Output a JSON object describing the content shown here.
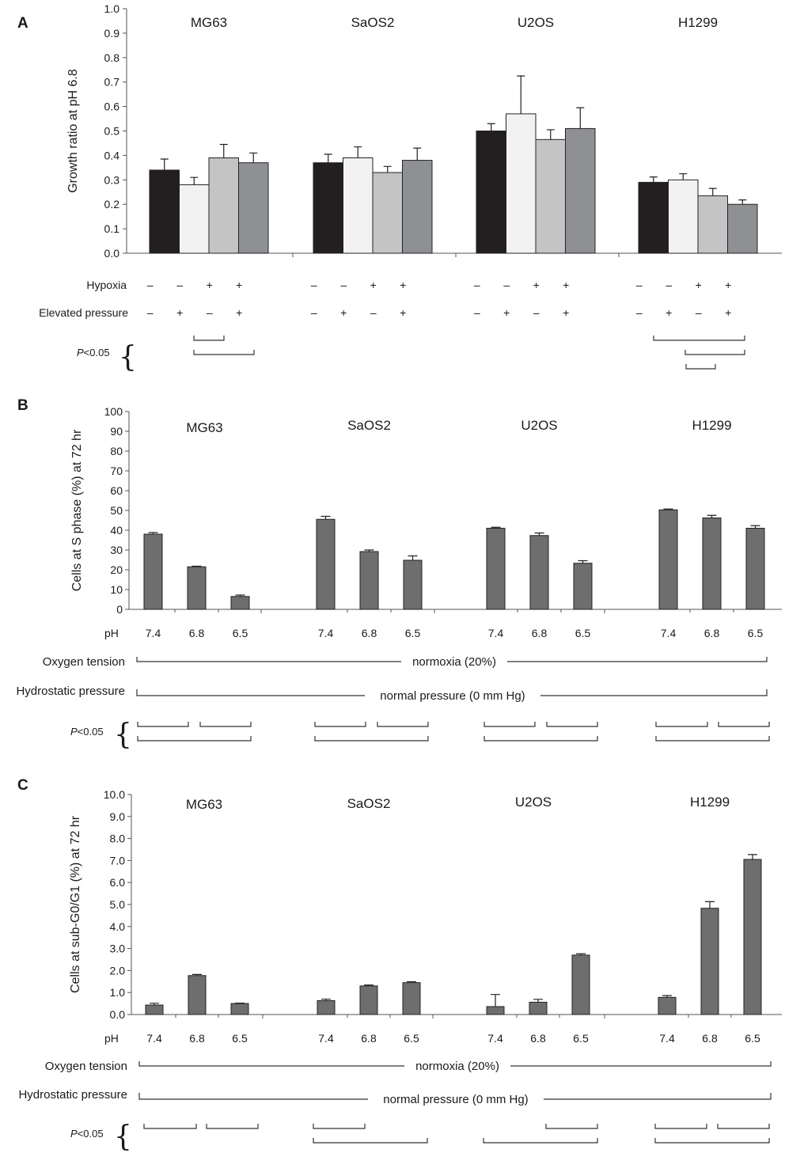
{
  "chart_data": [
    {
      "panel": "A",
      "type": "bar",
      "ylabel": "Growth ratio at pH 6.8",
      "ylim": [
        0,
        1.0
      ],
      "yticks": [
        "0.0",
        "0.1",
        "0.2",
        "0.3",
        "0.4",
        "0.5",
        "0.6",
        "0.7",
        "0.8",
        "0.9",
        "1.0"
      ],
      "groups": [
        "MG63",
        "SaOS2",
        "U2OS",
        "H1299"
      ],
      "series": [
        {
          "name": "normoxia / normal pressure",
          "color": "#231f20",
          "values": [
            0.34,
            0.37,
            0.5,
            0.29
          ],
          "errors": [
            0.045,
            0.035,
            0.03,
            0.022
          ]
        },
        {
          "name": "normoxia / elevated pressure",
          "color": "#f2f2f2",
          "values": [
            0.28,
            0.39,
            0.57,
            0.3
          ],
          "errors": [
            0.03,
            0.045,
            0.155,
            0.025
          ]
        },
        {
          "name": "hypoxia / normal pressure",
          "color": "#c4c4c4",
          "values": [
            0.39,
            0.33,
            0.465,
            0.235
          ],
          "errors": [
            0.055,
            0.025,
            0.04,
            0.03
          ]
        },
        {
          "name": "hypoxia / elevated pressure",
          "color": "#8f9093",
          "values": [
            0.37,
            0.38,
            0.51,
            0.2
          ],
          "errors": [
            0.04,
            0.05,
            0.085,
            0.018
          ]
        }
      ],
      "condition_rows": [
        {
          "label": "Hypoxia",
          "signs": [
            "–",
            "–",
            "+",
            "+"
          ]
        },
        {
          "label": "Elevated pressure",
          "signs": [
            "–",
            "+",
            "–",
            "+"
          ]
        }
      ],
      "significance_label": "<0.05",
      "significance_symbol": "P"
    },
    {
      "panel": "B",
      "type": "bar",
      "ylabel": "Cells at S phase (%) at 72 hr",
      "ylim": [
        0,
        100
      ],
      "yticks": [
        "0",
        "10",
        "20",
        "30",
        "40",
        "50",
        "60",
        "70",
        "80",
        "90",
        "100"
      ],
      "groups": [
        "MG63",
        "SaOS2",
        "U2OS",
        "H1299"
      ],
      "categories": [
        "7.4",
        "6.8",
        "6.5"
      ],
      "x_prefix": "pH",
      "bar_color": "#6e6e6e",
      "values": [
        [
          38,
          21.5,
          6.5
        ],
        [
          45.5,
          29.2,
          24.8
        ],
        [
          41,
          37.3,
          23.3
        ],
        [
          50.3,
          46.2,
          41
        ]
      ],
      "errors": [
        [
          0.8,
          0.3,
          0.7
        ],
        [
          1.5,
          0.8,
          2.2
        ],
        [
          0.5,
          1.3,
          1.3
        ],
        [
          0.4,
          1.3,
          1.3
        ]
      ],
      "oxygen_label": "Oxygen tension",
      "oxygen_value": "normoxia (20%)",
      "pressure_label": "Hydrostatic pressure",
      "pressure_value": "normal pressure (0 mm Hg)",
      "significance_label": "<0.05",
      "significance_symbol": "P"
    },
    {
      "panel": "C",
      "type": "bar",
      "ylabel": "Cells at sub-G0/G1 (%) at 72 hr",
      "ylim": [
        0,
        10
      ],
      "yticks": [
        "0.0",
        "1.0",
        "2.0",
        "3.0",
        "4.0",
        "5.0",
        "6.0",
        "7.0",
        "8.0",
        "9.0",
        "10.0"
      ],
      "groups": [
        "MG63",
        "SaOS2",
        "U2OS",
        "H1299"
      ],
      "categories": [
        "7.4",
        "6.8",
        "6.5"
      ],
      "x_prefix": "pH",
      "bar_color": "#6e6e6e",
      "values": [
        [
          0.43,
          1.77,
          0.5
        ],
        [
          0.63,
          1.3,
          1.45
        ],
        [
          0.36,
          0.56,
          2.7
        ],
        [
          0.78,
          4.83,
          7.05
        ]
      ],
      "errors": [
        [
          0.08,
          0.05,
          0.02
        ],
        [
          0.07,
          0.04,
          0.04
        ],
        [
          0.55,
          0.13,
          0.06
        ],
        [
          0.08,
          0.3,
          0.22
        ]
      ],
      "oxygen_label": "Oxygen tension",
      "oxygen_value": "normoxia (20%)",
      "pressure_label": "Hydrostatic pressure",
      "pressure_value": "normal pressure (0 mm Hg)",
      "significance_label": "<0.05",
      "significance_symbol": "P"
    }
  ]
}
